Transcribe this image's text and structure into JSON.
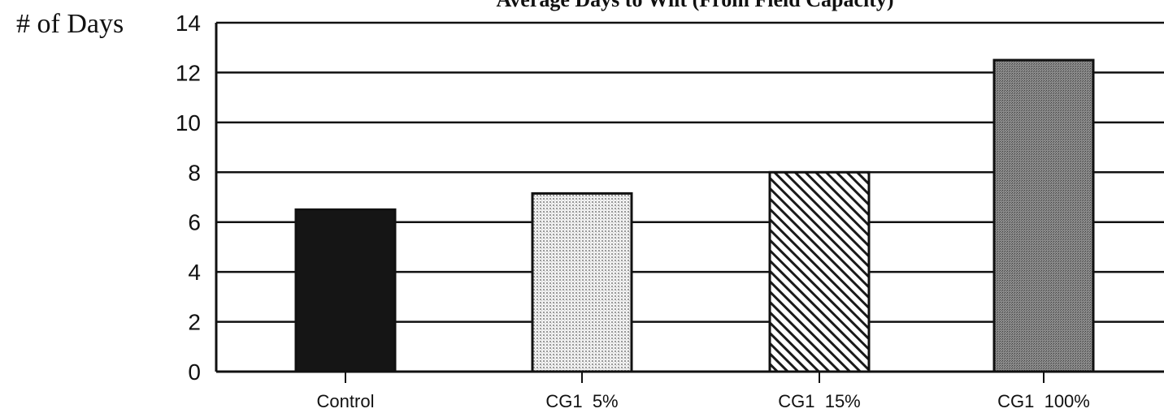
{
  "chart_data": {
    "type": "bar",
    "title": "Average Days to Wilt (From Field Capacity)",
    "ylabel": "# of Days",
    "xlabel": "",
    "categories": [
      "Control",
      "CG1  5%",
      "CG1  15%",
      "CG1  100%"
    ],
    "values": [
      6.5,
      7.15,
      8.0,
      12.5
    ],
    "ylim": [
      0,
      14
    ],
    "yticks": [
      0,
      2,
      4,
      6,
      8,
      10,
      12,
      14
    ],
    "grid": true,
    "legend": "none",
    "bar_fills": [
      "solid-black",
      "fine-dots",
      "diagonal-hatch",
      "dense-dots"
    ],
    "colors": {
      "ink": "#111111",
      "background": "#ffffff",
      "dot_gray": "#b8b8b8",
      "dense_gray": "#6e6e6e"
    }
  }
}
